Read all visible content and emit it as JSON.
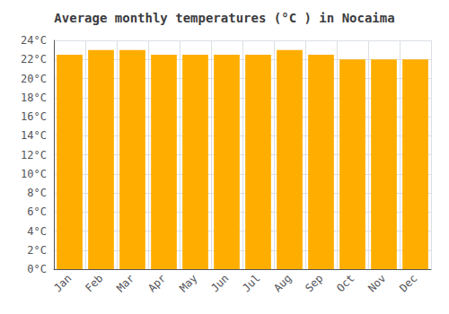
{
  "chart_data": {
    "type": "bar",
    "title": "Average monthly temperatures (°C ) in Nocaima",
    "categories": [
      "Jan",
      "Feb",
      "Mar",
      "Apr",
      "May",
      "Jun",
      "Jul",
      "Aug",
      "Sep",
      "Oct",
      "Nov",
      "Dec"
    ],
    "values": [
      22.5,
      23.0,
      23.0,
      22.5,
      22.5,
      22.5,
      22.5,
      23.0,
      22.5,
      22.0,
      22.0,
      22.0
    ],
    "color": "#FFAE00",
    "ylim": [
      0,
      24
    ],
    "yticks": [
      {
        "value": 0,
        "label": "0°C"
      },
      {
        "value": 2,
        "label": "2°C"
      },
      {
        "value": 4,
        "label": "4°C"
      },
      {
        "value": 6,
        "label": "6°C"
      },
      {
        "value": 8,
        "label": "8°C"
      },
      {
        "value": 10,
        "label": "10°C"
      },
      {
        "value": 12,
        "label": "12°C"
      },
      {
        "value": 14,
        "label": "14°C"
      },
      {
        "value": 16,
        "label": "16°C"
      },
      {
        "value": 18,
        "label": "18°C"
      },
      {
        "value": 20,
        "label": "20°C"
      },
      {
        "value": 22,
        "label": "22°C"
      },
      {
        "value": 24,
        "label": "24°C"
      }
    ],
    "grid": true
  }
}
